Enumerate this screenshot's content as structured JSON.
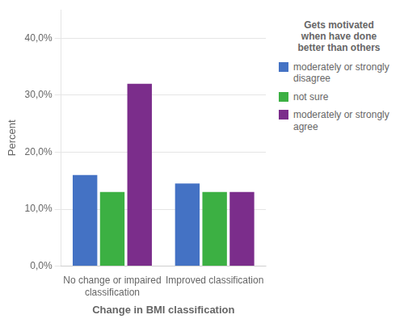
{
  "chart_data": {
    "type": "bar",
    "categories": [
      "No change or impaired\nclassification",
      "Improved classification"
    ],
    "series": [
      {
        "name": "moderately or strongly\ndisagree",
        "color": "#4472C4",
        "values": [
          16.0,
          14.5
        ]
      },
      {
        "name": "not sure",
        "color": "#3CB043",
        "values": [
          13.0,
          13.0
        ]
      },
      {
        "name": "moderately or strongly\nagree",
        "color": "#7B2D8B",
        "values": [
          32.0,
          13.0
        ]
      }
    ],
    "xlabel": "Change in BMI classification",
    "ylabel": "Percent",
    "ylim": [
      0,
      45
    ],
    "yticks": [
      {
        "value": 0,
        "label": "0,0%"
      },
      {
        "value": 10,
        "label": "10,0%"
      },
      {
        "value": 20,
        "label": "20,0%"
      },
      {
        "value": 30,
        "label": "30,0%"
      },
      {
        "value": 40,
        "label": "40,0%"
      }
    ],
    "grid": true,
    "legend": "right",
    "legend_title": "Gets motivated\nwhen have done\nbetter than others"
  }
}
